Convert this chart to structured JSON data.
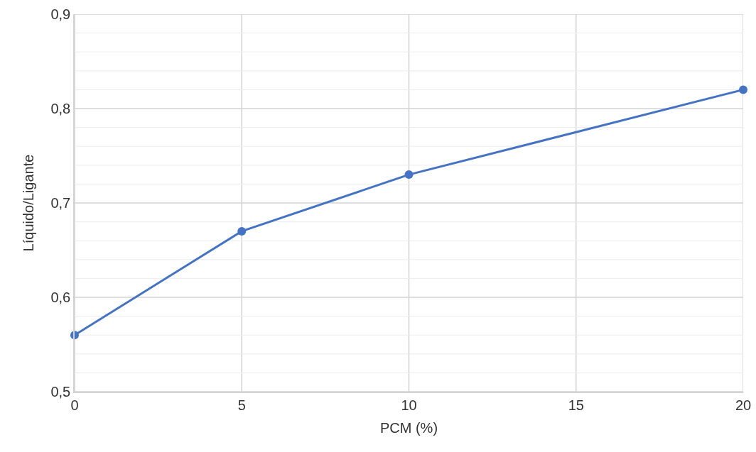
{
  "chart_data": {
    "type": "line",
    "xlabel": "PCM (%)",
    "ylabel": "Líquido/Ligante",
    "x": [
      0,
      5,
      10,
      20
    ],
    "series": [
      {
        "color": "#4472c4",
        "values": [
          0.56,
          0.67,
          0.73,
          0.82
        ]
      }
    ],
    "xlim": [
      0,
      20
    ],
    "xticks": [
      0,
      5,
      10,
      15,
      20
    ],
    "ylim": [
      0.5,
      0.9
    ],
    "yticks": [
      {
        "value": 0.5,
        "label": "0,5"
      },
      {
        "value": 0.52,
        "label": null
      },
      {
        "value": 0.54,
        "label": null
      },
      {
        "value": 0.56,
        "label": null
      },
      {
        "value": 0.58,
        "label": null
      },
      {
        "value": 0.6,
        "label": "0,6"
      },
      {
        "value": 0.62,
        "label": null
      },
      {
        "value": 0.64,
        "label": null
      },
      {
        "value": 0.66,
        "label": null
      },
      {
        "value": 0.68,
        "label": null
      },
      {
        "value": 0.7,
        "label": "0,7"
      },
      {
        "value": 0.72,
        "label": null
      },
      {
        "value": 0.74,
        "label": null
      },
      {
        "value": 0.76,
        "label": null
      },
      {
        "value": 0.78,
        "label": null
      },
      {
        "value": 0.8,
        "label": "0,8"
      },
      {
        "value": 0.82,
        "label": null
      },
      {
        "value": 0.84,
        "label": null
      },
      {
        "value": 0.86,
        "label": null
      },
      {
        "value": 0.88,
        "label": null
      },
      {
        "value": 0.9,
        "label": "0,9"
      }
    ],
    "grid": true,
    "marker": "circle",
    "line_style": "solid"
  }
}
